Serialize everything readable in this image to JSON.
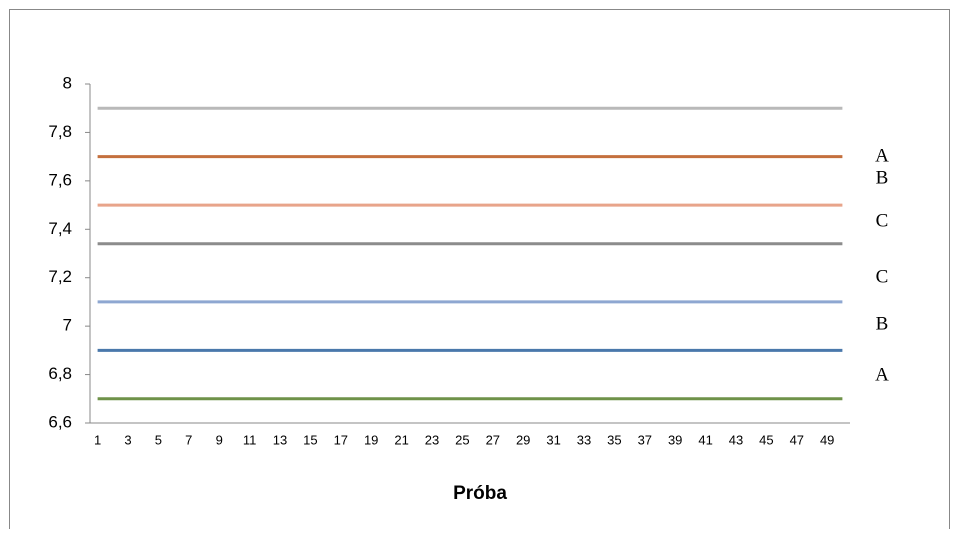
{
  "chart_data": {
    "type": "line",
    "xlabel": "Próba",
    "categories": [
      1,
      null,
      3,
      null,
      5,
      null,
      7,
      null,
      9,
      null,
      11,
      null,
      13,
      null,
      15,
      null,
      17,
      null,
      19,
      null,
      21,
      null,
      23,
      null,
      25,
      null,
      27,
      null,
      29,
      null,
      31,
      null,
      33,
      null,
      35,
      null,
      37,
      null,
      39,
      null,
      41,
      null,
      43,
      null,
      45,
      null,
      47,
      null,
      49,
      null
    ],
    "series": [
      {
        "color": "#b9b9b9",
        "values": [
          7.9,
          7.9,
          7.9,
          7.9,
          7.9,
          7.9,
          7.9,
          7.9,
          7.9,
          7.9,
          7.9,
          7.9,
          7.9,
          7.9,
          7.9,
          7.9,
          7.9,
          7.9,
          7.9,
          7.9,
          7.9,
          7.9,
          7.9,
          7.9,
          7.9,
          7.9,
          7.9,
          7.9,
          7.9,
          7.9,
          7.9,
          7.9,
          7.9,
          7.9,
          7.9,
          7.9,
          7.9,
          7.9,
          7.9,
          7.9,
          7.9,
          7.9,
          7.9,
          7.9,
          7.9,
          7.9,
          7.9,
          7.9,
          7.9,
          7.9
        ]
      },
      {
        "color": "#c4703e",
        "values": [
          7.7,
          7.7,
          7.7,
          7.7,
          7.7,
          7.7,
          7.7,
          7.7,
          7.7,
          7.7,
          7.7,
          7.7,
          7.7,
          7.7,
          7.7,
          7.7,
          7.7,
          7.7,
          7.7,
          7.7,
          7.7,
          7.7,
          7.7,
          7.7,
          7.7,
          7.7,
          7.7,
          7.7,
          7.7,
          7.7,
          7.7,
          7.7,
          7.7,
          7.7,
          7.7,
          7.7,
          7.7,
          7.7,
          7.7,
          7.7,
          7.7,
          7.7,
          7.7,
          7.7,
          7.7,
          7.7,
          7.7,
          7.7,
          7.7,
          7.7
        ]
      },
      {
        "color": "#e8a48a",
        "values": [
          7.5,
          7.5,
          7.5,
          7.5,
          7.5,
          7.5,
          7.5,
          7.5,
          7.5,
          7.5,
          7.5,
          7.5,
          7.5,
          7.5,
          7.5,
          7.5,
          7.5,
          7.5,
          7.5,
          7.5,
          7.5,
          7.5,
          7.5,
          7.5,
          7.5,
          7.5,
          7.5,
          7.5,
          7.5,
          7.5,
          7.5,
          7.5,
          7.5,
          7.5,
          7.5,
          7.5,
          7.5,
          7.5,
          7.5,
          7.5,
          7.5,
          7.5,
          7.5,
          7.5,
          7.5,
          7.5,
          7.5,
          7.5,
          7.5,
          7.5
        ]
      },
      {
        "color": "#8c8c8c",
        "values": [
          7.34,
          7.34,
          7.34,
          7.34,
          7.34,
          7.34,
          7.34,
          7.34,
          7.34,
          7.34,
          7.34,
          7.34,
          7.34,
          7.34,
          7.34,
          7.34,
          7.34,
          7.34,
          7.34,
          7.34,
          7.34,
          7.34,
          7.34,
          7.34,
          7.34,
          7.34,
          7.34,
          7.34,
          7.34,
          7.34,
          7.34,
          7.34,
          7.34,
          7.34,
          7.34,
          7.34,
          7.34,
          7.34,
          7.34,
          7.34,
          7.34,
          7.34,
          7.34,
          7.34,
          7.34,
          7.34,
          7.34,
          7.34,
          7.34,
          7.34
        ]
      },
      {
        "color": "#8ea7d1",
        "values": [
          7.1,
          7.1,
          7.1,
          7.1,
          7.1,
          7.1,
          7.1,
          7.1,
          7.1,
          7.1,
          7.1,
          7.1,
          7.1,
          7.1,
          7.1,
          7.1,
          7.1,
          7.1,
          7.1,
          7.1,
          7.1,
          7.1,
          7.1,
          7.1,
          7.1,
          7.1,
          7.1,
          7.1,
          7.1,
          7.1,
          7.1,
          7.1,
          7.1,
          7.1,
          7.1,
          7.1,
          7.1,
          7.1,
          7.1,
          7.1,
          7.1,
          7.1,
          7.1,
          7.1,
          7.1,
          7.1,
          7.1,
          7.1,
          7.1,
          7.1
        ]
      },
      {
        "color": "#4a78ab",
        "values": [
          6.9,
          6.9,
          6.9,
          6.9,
          6.9,
          6.9,
          6.9,
          6.9,
          6.9,
          6.9,
          6.9,
          6.9,
          6.9,
          6.9,
          6.9,
          6.9,
          6.9,
          6.9,
          6.9,
          6.9,
          6.9,
          6.9,
          6.9,
          6.9,
          6.9,
          6.9,
          6.9,
          6.9,
          6.9,
          6.9,
          6.9,
          6.9,
          6.9,
          6.9,
          6.9,
          6.9,
          6.9,
          6.9,
          6.9,
          6.9,
          6.9,
          6.9,
          6.9,
          6.9,
          6.9,
          6.9,
          6.9,
          6.9,
          6.9,
          6.9
        ]
      },
      {
        "color": "#6f9249",
        "values": [
          6.7,
          6.7,
          6.7,
          6.7,
          6.7,
          6.7,
          6.7,
          6.7,
          6.7,
          6.7,
          6.7,
          6.7,
          6.7,
          6.7,
          6.7,
          6.7,
          6.7,
          6.7,
          6.7,
          6.7,
          6.7,
          6.7,
          6.7,
          6.7,
          6.7,
          6.7,
          6.7,
          6.7,
          6.7,
          6.7,
          6.7,
          6.7,
          6.7,
          6.7,
          6.7,
          6.7,
          6.7,
          6.7,
          6.7,
          6.7,
          6.7,
          6.7,
          6.7,
          6.7,
          6.7,
          6.7,
          6.7,
          6.7,
          6.7,
          6.7
        ]
      }
    ],
    "ylim": [
      6.6,
      8
    ],
    "yticks": [
      {
        "value": 6.6,
        "label": "6,6"
      },
      {
        "value": 6.8,
        "label": "6,8"
      },
      7,
      {
        "value": 7.2,
        "label": "7,2"
      },
      {
        "value": 7.4,
        "label": "7,4"
      },
      {
        "value": 7.6,
        "label": "7,6"
      },
      {
        "value": 7.8,
        "label": "7,8"
      },
      8
    ],
    "annotations": [
      "A",
      "B",
      "C",
      "C",
      "B",
      "A"
    ]
  }
}
